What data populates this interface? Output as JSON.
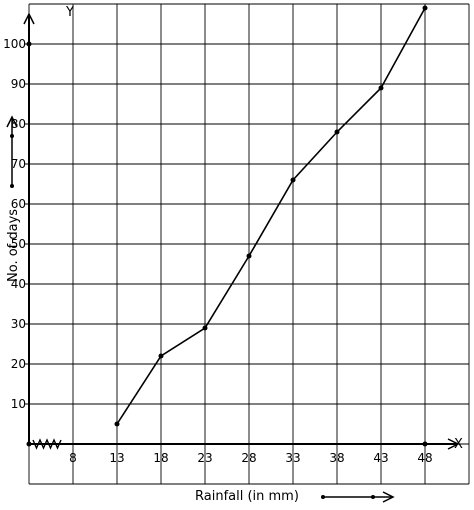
{
  "chart_data": {
    "type": "line",
    "title": "",
    "xlabel": "Rainfall (in mm)",
    "ylabel": "No. of days",
    "x_axis_letter": "X",
    "y_axis_letter": "Y",
    "x": [
      13,
      18,
      23,
      28,
      33,
      38,
      43,
      48
    ],
    "y": [
      5,
      22,
      29,
      47,
      66,
      78,
      89,
      109
    ],
    "x_ticks": [
      "8",
      "13",
      "18",
      "23",
      "28",
      "33",
      "38",
      "43",
      "48"
    ],
    "y_ticks": [
      "10",
      "20",
      "30",
      "40",
      "50",
      "60",
      "70",
      "80",
      "90",
      "100"
    ],
    "xlim": [
      3,
      53
    ],
    "ylim": [
      -10,
      110
    ],
    "axis_break": "x-axis break near origin",
    "grid": true,
    "line_color": "#000000",
    "grid_color": "#000000"
  }
}
